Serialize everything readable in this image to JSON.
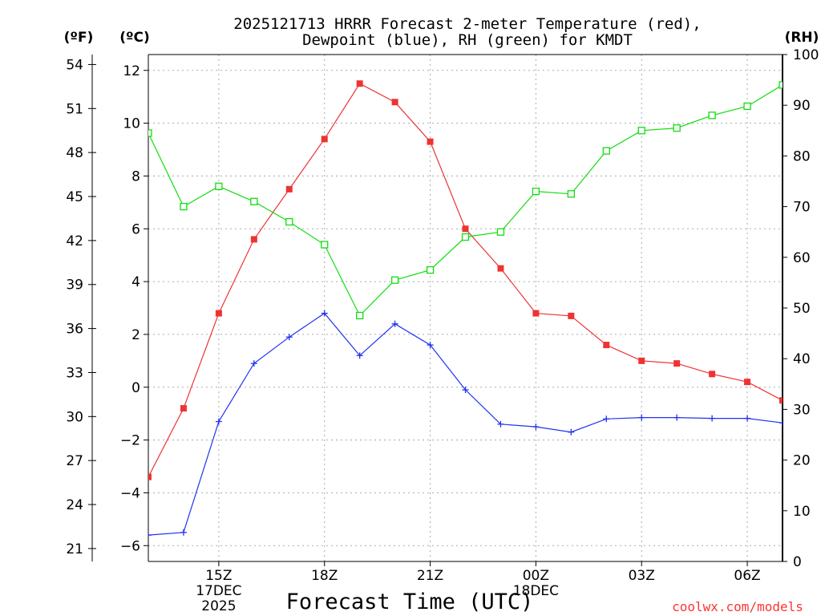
{
  "chart_data": {
    "type": "line",
    "title_line1": "2025121713 HRRR Forecast 2-meter Temperature (red),",
    "title_line2": "Dewpoint (blue), RH (green) for KMDT",
    "xlabel": "Forecast Time (UTC)",
    "credit": "coolwx.com/models",
    "units": {
      "fahrenheit": "(ºF)",
      "celsius": "(ºC)",
      "rh": "(RH)"
    },
    "forecast_hours_utc": [
      13,
      14,
      15,
      16,
      17,
      18,
      19,
      20,
      21,
      22,
      23,
      24,
      25,
      26,
      27,
      28,
      29,
      30,
      31
    ],
    "xlim": [
      13,
      31
    ],
    "x_ticks": [
      {
        "hour": 15,
        "label": "15Z"
      },
      {
        "hour": 18,
        "label": "18Z"
      },
      {
        "hour": 21,
        "label": "21Z"
      },
      {
        "hour": 24,
        "label": "00Z"
      },
      {
        "hour": 27,
        "label": "03Z"
      },
      {
        "hour": 30,
        "label": "06Z"
      }
    ],
    "date_labels": [
      {
        "hour": 15,
        "lines": [
          "17DEC",
          "2025"
        ]
      },
      {
        "hour": 24,
        "lines": [
          "18DEC"
        ]
      }
    ],
    "left_axis_celsius": {
      "range": [
        -6.6,
        12.6
      ],
      "ticks": [
        -6,
        -4,
        -2,
        0,
        2,
        4,
        6,
        8,
        10,
        12
      ]
    },
    "left_axis_fahrenheit": {
      "ticks": [
        21,
        24,
        27,
        30,
        33,
        36,
        39,
        42,
        45,
        48,
        51,
        54
      ]
    },
    "right_axis_rh": {
      "range": [
        0,
        100
      ],
      "ticks": [
        0,
        10,
        20,
        30,
        40,
        50,
        60,
        70,
        80,
        90,
        100
      ]
    },
    "series": [
      {
        "name": "2-meter Temperature",
        "axis": "celsius",
        "color": "#ee3333",
        "marker": "filled-square",
        "values": [
          -3.4,
          -0.8,
          2.8,
          5.6,
          7.5,
          9.4,
          11.5,
          10.8,
          9.3,
          6.0,
          4.5,
          2.8,
          2.7,
          1.6,
          1.0,
          0.9,
          0.5,
          0.2,
          -0.5
        ]
      },
      {
        "name": "Dewpoint",
        "axis": "celsius",
        "color": "#2233ee",
        "marker": "plus",
        "values": [
          -5.6,
          -5.5,
          -1.3,
          0.9,
          1.9,
          2.8,
          1.2,
          2.4,
          1.6,
          -0.1,
          -1.4,
          -1.5,
          -1.7,
          -1.2,
          -1.15,
          -1.15,
          -1.18,
          -1.18,
          -1.35
        ]
      },
      {
        "name": "Relative Humidity",
        "axis": "rh",
        "color": "#11dd11",
        "marker": "open-square",
        "values": [
          84.5,
          70.0,
          74.0,
          71.0,
          67.0,
          62.5,
          48.5,
          55.5,
          57.5,
          64.0,
          65.0,
          73.0,
          72.5,
          81.0,
          85.0,
          85.5,
          88.0,
          89.8,
          94.0
        ]
      }
    ]
  }
}
